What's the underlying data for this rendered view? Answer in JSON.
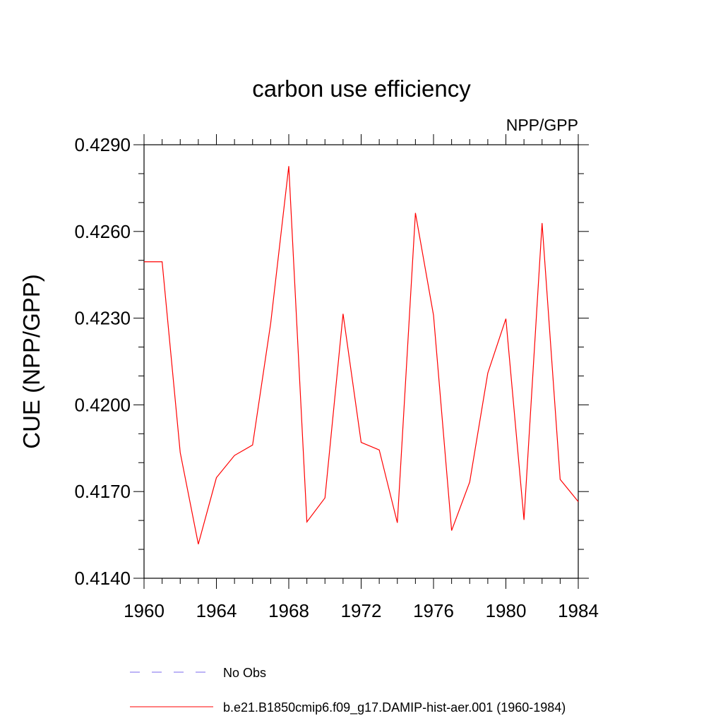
{
  "chart_data": {
    "type": "line",
    "title": "carbon use efficiency",
    "subtitle_right": "NPP/GPP",
    "xlabel": "",
    "ylabel": "CUE  (NPP/GPP)",
    "xlim": [
      1960,
      1984
    ],
    "ylim": [
      0.414,
      0.429
    ],
    "x_ticks": [
      1960,
      1964,
      1968,
      1972,
      1976,
      1980,
      1984
    ],
    "y_ticks": [
      0.414,
      0.417,
      0.42,
      0.423,
      0.426,
      0.429
    ],
    "y_tick_labels": [
      "0.4140",
      "0.4170",
      "0.4200",
      "0.4230",
      "0.4260",
      "0.4290"
    ],
    "y_minor_step": 0.001,
    "x_minor_step": 1,
    "grid": false,
    "legend_position": "bottom",
    "series": [
      {
        "name": "No Obs",
        "color": "#7b68ee",
        "dash": true,
        "x": [],
        "values": []
      },
      {
        "name": "b.e21.B1850cmip6.f09_g17.DAMIP-hist-aer.001 (1960-1984)",
        "color": "#ff0000",
        "dash": false,
        "x": [
          1960,
          1961,
          1962,
          1963,
          1964,
          1965,
          1966,
          1967,
          1968,
          1969,
          1970,
          1971,
          1972,
          1973,
          1974,
          1975,
          1976,
          1977,
          1978,
          1979,
          1980,
          1981,
          1982,
          1983,
          1984
        ],
        "values": [
          0.42495,
          0.42495,
          0.41835,
          0.41518,
          0.41748,
          0.41825,
          0.41861,
          0.42282,
          0.42826,
          0.41595,
          0.41678,
          0.42315,
          0.4187,
          0.41844,
          0.41592,
          0.42664,
          0.4231,
          0.41565,
          0.41733,
          0.4211,
          0.42298,
          0.41602,
          0.42629,
          0.41742,
          0.41665
        ]
      }
    ]
  }
}
